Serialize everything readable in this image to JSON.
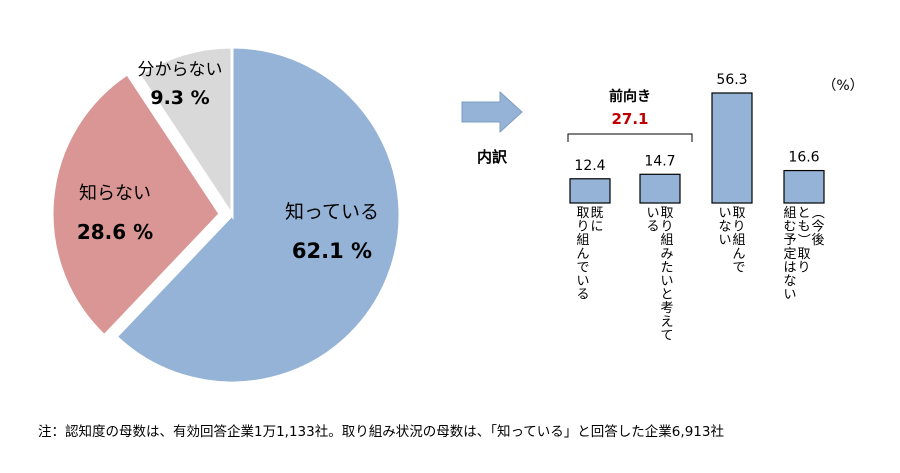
{
  "chart_data": [
    {
      "type": "pie",
      "slices": [
        {
          "label": "知っている",
          "value": 62.1,
          "display": "62.1 %",
          "color": "#95b3d7"
        },
        {
          "label": "知らない",
          "value": 28.6,
          "display": "28.6 %",
          "color": "#d99694"
        },
        {
          "label": "分からない",
          "value": 9.3,
          "display": "9.3 %",
          "color": "#d9d9d9"
        }
      ]
    },
    {
      "type": "bar",
      "unit": "（%）",
      "title": "内訳",
      "group_label": "前向き",
      "group_value": "27.1",
      "categories": [
        "既に取り組んでいる",
        "取り組みたいと考えている",
        "取り組んでいない",
        "（今後とも）取り組む予定はない"
      ],
      "values": [
        12.4,
        14.7,
        56.3,
        16.6
      ],
      "value_labels": [
        "12.4",
        "14.7",
        "56.3",
        "16.6"
      ],
      "bar_color": "#95b3d7",
      "group_color": "#c00000"
    }
  ],
  "footnote": "注：認知度の母数は、有効回答企業1万1,133社。取り組み状況の母数は、「知っている」と回答した企業6,913社"
}
